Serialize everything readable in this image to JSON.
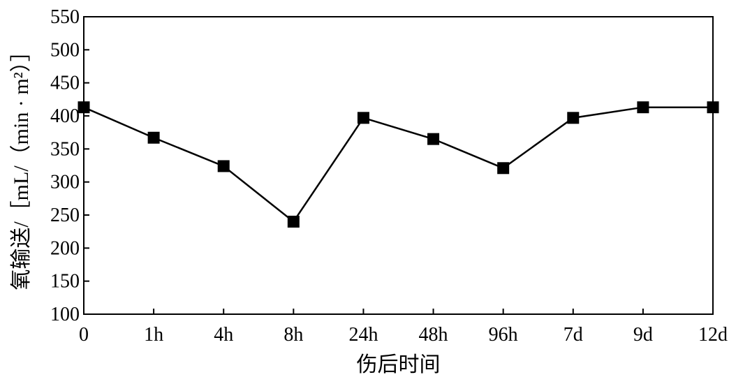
{
  "chart_data": {
    "type": "line",
    "title": "",
    "xlabel": "伤后时间",
    "ylabel": "氧输送/［mL/（min · m²）］",
    "categories": [
      "0",
      "1h",
      "4h",
      "8h",
      "24h",
      "48h",
      "96h",
      "7d",
      "9d",
      "12d"
    ],
    "series": [
      {
        "values": [
          413,
          367,
          324,
          240,
          397,
          365,
          321,
          397,
          413,
          413
        ]
      }
    ],
    "ylim": [
      100,
      550
    ],
    "yticks": [
      100,
      150,
      200,
      250,
      300,
      350,
      400,
      450,
      500,
      550
    ],
    "grid": false,
    "legend": "none",
    "marker": "filled-square",
    "line_color": "#000000"
  }
}
